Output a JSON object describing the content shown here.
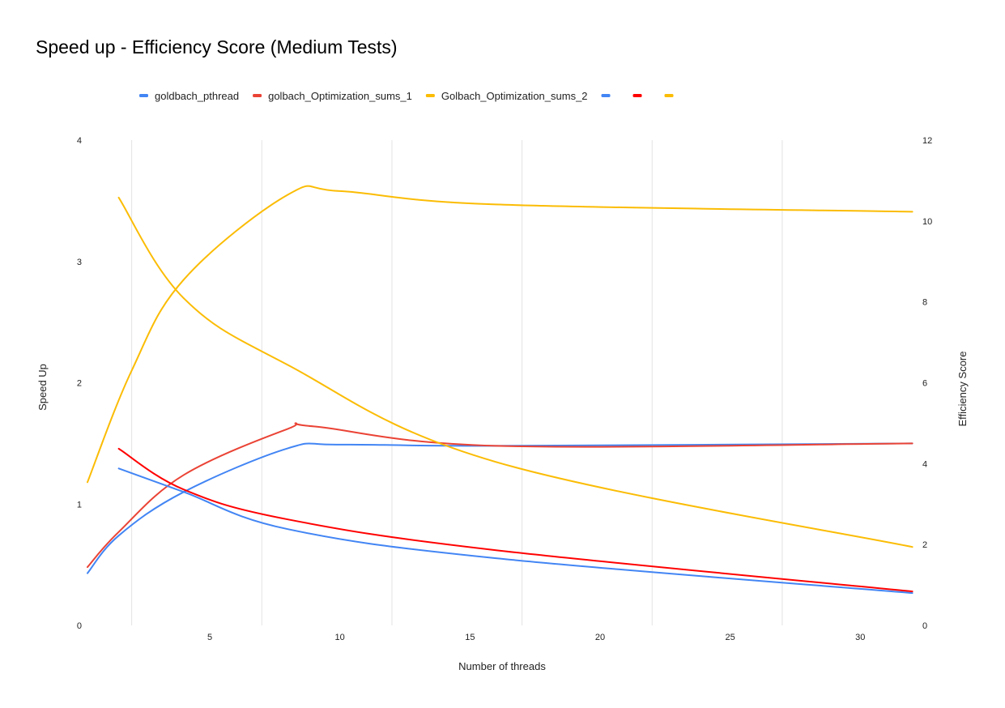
{
  "chart_data": {
    "type": "line",
    "title": "Speed up - Efficiency Score (Medium Tests)",
    "xlabel": "Number of threads",
    "ylabel_left": "Speed Up",
    "ylabel_right": "Efficiency Score",
    "xlim": [
      0.3,
      32.2
    ],
    "ylim_left": [
      0,
      4
    ],
    "ylim_right": [
      0,
      12
    ],
    "x_ticks": [
      5,
      10,
      15,
      20,
      25,
      30
    ],
    "y_ticks_left": [
      0,
      1,
      2,
      3,
      4
    ],
    "y_ticks_right": [
      0,
      2,
      4,
      6,
      8,
      10,
      12
    ],
    "grid_x": [
      2,
      7,
      12,
      17,
      22,
      27
    ],
    "grid": true,
    "legend_position": "top",
    "series": [
      {
        "name": "goldbach_pthread",
        "axis": "left",
        "color": "#4285f4",
        "x": [
          0.3,
          1.5,
          4,
          8,
          10,
          16,
          32
        ],
        "y": [
          0.43,
          0.74,
          1.1,
          1.46,
          1.49,
          1.48,
          1.5
        ]
      },
      {
        "name": "golbach_Optimization_sums_1",
        "axis": "left",
        "color": "#ea4335",
        "x": [
          0.3,
          1.5,
          4,
          8,
          9,
          16,
          32
        ],
        "y": [
          0.48,
          0.77,
          1.24,
          1.62,
          1.64,
          1.48,
          1.5
        ]
      },
      {
        "name": "Golbach_Optimization_sums_2",
        "axis": "left",
        "color": "#fbbc04",
        "x": [
          0.3,
          2,
          4,
          8,
          10,
          16,
          32
        ],
        "y": [
          1.18,
          2.1,
          2.85,
          3.55,
          3.58,
          3.47,
          3.41
        ]
      },
      {
        "name": "",
        "axis": "right",
        "color": "#4285f4",
        "x": [
          1.5,
          4,
          8,
          16,
          32
        ],
        "y": [
          3.88,
          3.3,
          2.38,
          1.66,
          0.8
        ]
      },
      {
        "name": "",
        "axis": "right",
        "color": "#ff0000",
        "x": [
          1.5,
          4,
          8,
          16,
          32
        ],
        "y": [
          4.37,
          3.36,
          2.62,
          1.86,
          0.84
        ]
      },
      {
        "name": "",
        "axis": "right",
        "color": "#fbbc04",
        "x": [
          1.5,
          4,
          8,
          16,
          32
        ],
        "y": [
          10.58,
          8.09,
          6.44,
          4.04,
          1.94
        ]
      }
    ]
  }
}
